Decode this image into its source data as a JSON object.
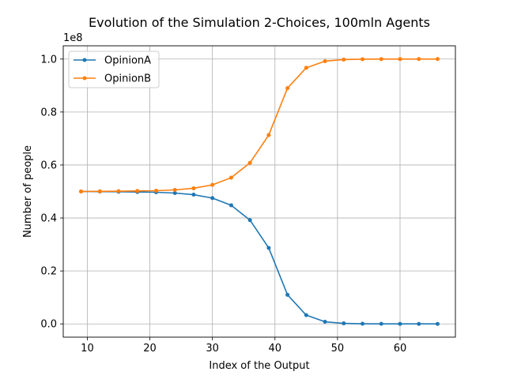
{
  "chart_data": {
    "type": "line",
    "title": "Evolution of the Simulation 2-Choices, 100mln Agents",
    "xlabel": "Index of the Output",
    "ylabel": "Number of people",
    "y_offset_label": "1e8",
    "xlim": [
      6.15,
      68.85
    ],
    "ylim": [
      -5000000,
      105000000
    ],
    "x_ticks": [
      10,
      20,
      30,
      40,
      50,
      60
    ],
    "x_tick_labels": [
      "10",
      "20",
      "30",
      "40",
      "50",
      "60"
    ],
    "y_ticks": [
      0,
      20000000,
      40000000,
      60000000,
      80000000,
      100000000
    ],
    "y_tick_labels": [
      "0.0",
      "0.2",
      "0.4",
      "0.6",
      "0.8",
      "1.0"
    ],
    "grid": true,
    "legend_position": "top-left",
    "x": [
      9,
      12,
      15,
      18,
      21,
      24,
      27,
      30,
      33,
      36,
      39,
      42,
      45,
      48,
      51,
      54,
      57,
      60,
      63,
      66
    ],
    "series": [
      {
        "name": "OpinionA",
        "color": "#1f77b4",
        "values": [
          50000000,
          49950000,
          49900000,
          49800000,
          49700000,
          49400000,
          48800000,
          47500000,
          44800000,
          39200000,
          28700000,
          11000000,
          3300000,
          800000,
          200000,
          60000,
          20000,
          10000,
          5000,
          2000
        ]
      },
      {
        "name": "OpinionB",
        "color": "#ff7f0e",
        "values": [
          50000000,
          50050000,
          50100000,
          50200000,
          50300000,
          50600000,
          51200000,
          52500000,
          55200000,
          60800000,
          71300000,
          89000000,
          96700000,
          99200000,
          99800000,
          99940000,
          99980000,
          99990000,
          99995000,
          99998000
        ]
      }
    ]
  }
}
